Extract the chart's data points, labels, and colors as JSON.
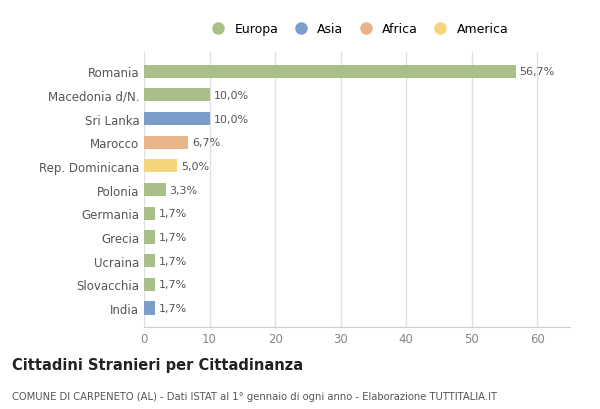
{
  "categories": [
    "India",
    "Slovacchia",
    "Ucraina",
    "Grecia",
    "Germania",
    "Polonia",
    "Rep. Dominicana",
    "Marocco",
    "Sri Lanka",
    "Macedonia d/N.",
    "Romania"
  ],
  "values": [
    1.7,
    1.7,
    1.7,
    1.7,
    1.7,
    3.3,
    5.0,
    6.7,
    10.0,
    10.0,
    56.7
  ],
  "labels": [
    "1,7%",
    "1,7%",
    "1,7%",
    "1,7%",
    "1,7%",
    "3,3%",
    "5,0%",
    "6,7%",
    "10,0%",
    "10,0%",
    "56,7%"
  ],
  "colors": [
    "#7b9ec9",
    "#a8bf87",
    "#a8bf87",
    "#a8bf87",
    "#a8bf87",
    "#a8bf87",
    "#f5d57a",
    "#e8b48a",
    "#7b9ec9",
    "#a8bf87",
    "#a8bf87"
  ],
  "legend_labels": [
    "Europa",
    "Asia",
    "Africa",
    "America"
  ],
  "legend_colors": [
    "#a8bf87",
    "#7b9ec9",
    "#e8b48a",
    "#f5d57a"
  ],
  "title": "Cittadini Stranieri per Cittadinanza",
  "subtitle": "COMUNE DI CARPENETO (AL) - Dati ISTAT al 1° gennaio di ogni anno - Elaborazione TUTTITALIA.IT",
  "xlim": [
    0,
    65
  ],
  "xticks": [
    0,
    10,
    20,
    30,
    40,
    50,
    60
  ],
  "bg_color": "#ffffff",
  "plot_bg_color": "#ffffff",
  "grid_color": "#e0e0e0",
  "bar_height": 0.55
}
